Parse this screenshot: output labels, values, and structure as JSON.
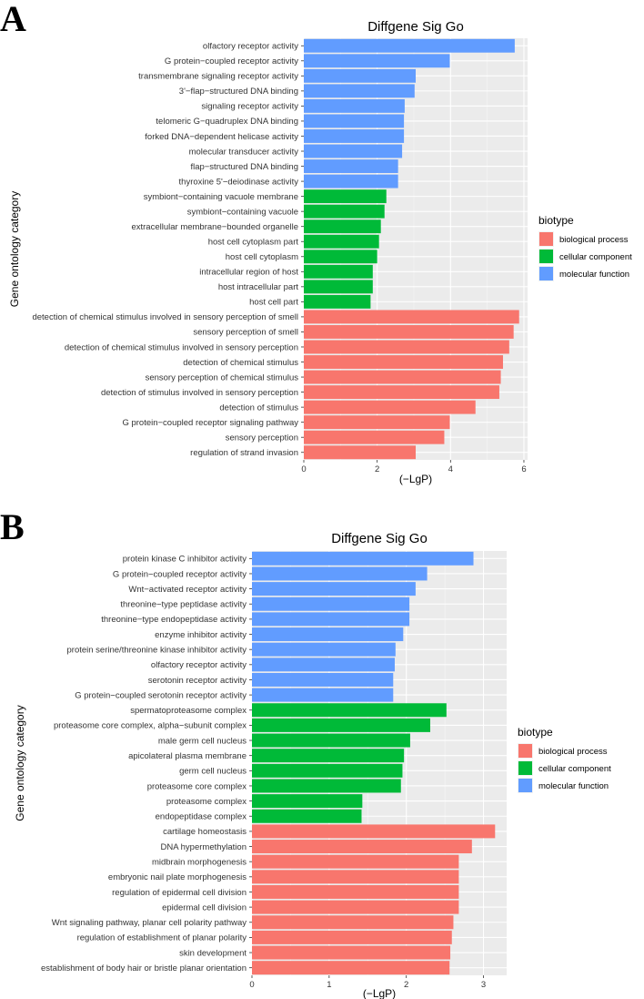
{
  "panels": [
    "A",
    "B"
  ],
  "chart_data": [
    {
      "type": "bar",
      "orientation": "horizontal",
      "panel": "A",
      "title": "Diffgene Sig Go",
      "xlabel": "(−LgP)",
      "ylabel": "Gene ontology category",
      "xlim": [
        0,
        6.1
      ],
      "xticks": [
        0,
        2,
        4,
        6
      ],
      "legend": {
        "title": "biotype",
        "placement": "right",
        "entries": [
          {
            "label": "biological process",
            "color": "#F8766D"
          },
          {
            "label": "cellular component",
            "color": "#00BA38"
          },
          {
            "label": "molecular function",
            "color": "#619CFF"
          }
        ]
      },
      "categories": [
        "olfactory receptor activity",
        "G protein−coupled receptor activity",
        "transmembrane signaling receptor activity",
        "3'−flap−structured DNA binding",
        "signaling receptor activity",
        "telomeric G−quadruplex DNA binding",
        "forked DNA−dependent helicase activity",
        "molecular transducer activity",
        "flap−structured DNA binding",
        "thyroxine 5'−deiodinase activity",
        "symbiont−containing vacuole membrane",
        "symbiont−containing vacuole",
        "extracellular membrane−bounded organelle",
        "host cell cytoplasm part",
        "host cell cytoplasm",
        "intracellular region of host",
        "host intracellular part",
        "host cell part",
        "detection of chemical stimulus involved in sensory perception of smell",
        "sensory perception of smell",
        "detection of chemical stimulus involved in sensory perception",
        "detection of chemical stimulus",
        "sensory perception of chemical stimulus",
        "detection of stimulus involved in sensory perception",
        "detection of stimulus",
        "G protein−coupled receptor signaling pathway",
        "sensory perception",
        "regulation of strand invasion"
      ],
      "values": [
        5.75,
        3.98,
        3.05,
        3.02,
        2.75,
        2.73,
        2.73,
        2.68,
        2.57,
        2.57,
        2.25,
        2.2,
        2.1,
        2.05,
        2.0,
        1.88,
        1.88,
        1.82,
        5.87,
        5.72,
        5.6,
        5.43,
        5.37,
        5.33,
        4.68,
        3.98,
        3.83,
        3.05
      ],
      "biotypes": [
        "molecular function",
        "molecular function",
        "molecular function",
        "molecular function",
        "molecular function",
        "molecular function",
        "molecular function",
        "molecular function",
        "molecular function",
        "molecular function",
        "cellular component",
        "cellular component",
        "cellular component",
        "cellular component",
        "cellular component",
        "cellular component",
        "cellular component",
        "cellular component",
        "biological process",
        "biological process",
        "biological process",
        "biological process",
        "biological process",
        "biological process",
        "biological process",
        "biological process",
        "biological process",
        "biological process"
      ]
    },
    {
      "type": "bar",
      "orientation": "horizontal",
      "panel": "B",
      "title": "Diffgene Sig Go",
      "xlabel": "(−LgP)",
      "ylabel": "Gene ontology category",
      "xlim": [
        0,
        3.3
      ],
      "xticks": [
        0,
        1,
        2,
        3
      ],
      "legend": {
        "title": "biotype",
        "placement": "right",
        "entries": [
          {
            "label": "biological process",
            "color": "#F8766D"
          },
          {
            "label": "cellular component",
            "color": "#00BA38"
          },
          {
            "label": "molecular function",
            "color": "#619CFF"
          }
        ]
      },
      "categories": [
        "protein kinase C inhibitor activity",
        "G protein−coupled receptor activity",
        "Wnt−activated receptor activity",
        "threonine−type peptidase activity",
        "threonine−type endopeptidase activity",
        "enzyme inhibitor activity",
        "protein serine/threonine kinase inhibitor activity",
        "olfactory receptor activity",
        "serotonin receptor activity",
        "G protein−coupled serotonin receptor activity",
        "spermatoproteasome complex",
        "proteasome core complex, alpha−subunit complex",
        "male germ cell nucleus",
        "apicolateral plasma membrane",
        "germ cell nucleus",
        "proteasome core complex",
        "proteasome complex",
        "endopeptidase complex",
        "cartilage homeostasis",
        "DNA hypermethylation",
        "midbrain morphogenesis",
        "embryonic nail plate morphogenesis",
        "regulation of epidermal cell division",
        "epidermal cell division",
        "Wnt signaling pathway, planar cell polarity pathway",
        "regulation of establishment of planar polarity",
        "skin development",
        "establishment of body hair or bristle planar orientation"
      ],
      "values": [
        2.87,
        2.27,
        2.12,
        2.04,
        2.04,
        1.96,
        1.86,
        1.85,
        1.83,
        1.83,
        2.52,
        2.31,
        2.05,
        1.97,
        1.95,
        1.93,
        1.43,
        1.42,
        3.15,
        2.85,
        2.68,
        2.68,
        2.68,
        2.68,
        2.61,
        2.59,
        2.57,
        2.56
      ],
      "biotypes": [
        "molecular function",
        "molecular function",
        "molecular function",
        "molecular function",
        "molecular function",
        "molecular function",
        "molecular function",
        "molecular function",
        "molecular function",
        "molecular function",
        "cellular component",
        "cellular component",
        "cellular component",
        "cellular component",
        "cellular component",
        "cellular component",
        "cellular component",
        "cellular component",
        "biological process",
        "biological process",
        "biological process",
        "biological process",
        "biological process",
        "biological process",
        "biological process",
        "biological process",
        "biological process",
        "biological process"
      ]
    }
  ]
}
